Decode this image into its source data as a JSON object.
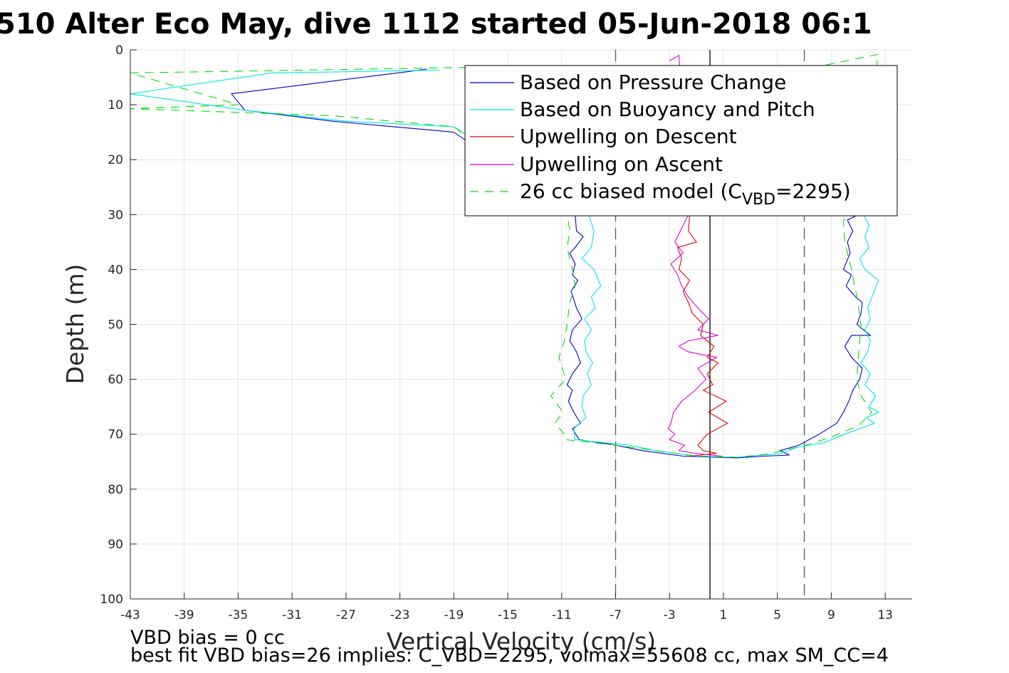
{
  "chart_data": {
    "type": "line",
    "title": "510 Alter Eco May, dive 1112 started 05-Jun-2018 06:1",
    "xlabel": "Vertical Velocity (cm/s)",
    "ylabel": "Depth (m)",
    "xlim": [
      -43,
      15
    ],
    "ylim": [
      0,
      100
    ],
    "y_reversed": true,
    "grid": true,
    "legend_placement": "top-right",
    "xticks": [
      -43,
      -39,
      -35,
      -31,
      -27,
      -23,
      -19,
      -15,
      -11,
      -7,
      -3,
      1,
      5,
      9,
      13
    ],
    "yticks": [
      0,
      10,
      20,
      30,
      40,
      50,
      60,
      70,
      80,
      90,
      100
    ],
    "reference_lines": [
      {
        "x": -7,
        "style": "dashed",
        "color": "#555555"
      },
      {
        "x": 7,
        "style": "dashed",
        "color": "#555555"
      },
      {
        "x": 0,
        "style": "solid",
        "color": "#000000"
      }
    ],
    "series": [
      {
        "name": "Based on Pressure Change",
        "color": "#0000c8",
        "dash": "",
        "points": [
          [
            -21,
            3.5
          ],
          [
            -22.5,
            4
          ],
          [
            -35.5,
            8
          ],
          [
            -34.5,
            11
          ],
          [
            -28,
            13
          ],
          [
            -19,
            15
          ],
          [
            -10,
            30
          ],
          [
            -9.9,
            33
          ],
          [
            -9.4,
            34
          ],
          [
            -10,
            36
          ],
          [
            -10.4,
            37
          ],
          [
            -10,
            39
          ],
          [
            -10.2,
            41
          ],
          [
            -9.8,
            42
          ],
          [
            -10.3,
            44
          ],
          [
            -9.9,
            47
          ],
          [
            -9.5,
            49
          ],
          [
            -10.2,
            51
          ],
          [
            -10.4,
            53
          ],
          [
            -9.9,
            55
          ],
          [
            -9.6,
            57
          ],
          [
            -10.2,
            59
          ],
          [
            -10.6,
            61
          ],
          [
            -10.2,
            62
          ],
          [
            -10.5,
            64
          ],
          [
            -10.1,
            66
          ],
          [
            -9.6,
            68
          ],
          [
            -10.2,
            69
          ],
          [
            -9.7,
            71
          ],
          [
            -7,
            72
          ],
          [
            -5,
            73
          ],
          [
            -2,
            74
          ],
          [
            2,
            74.3
          ],
          [
            4,
            74
          ],
          [
            5.9,
            73.8
          ],
          [
            5.2,
            73
          ],
          [
            6.6,
            72
          ],
          [
            8.1,
            70
          ],
          [
            9.4,
            68
          ],
          [
            9.9,
            66
          ],
          [
            10.3,
            64
          ],
          [
            10.6,
            62
          ],
          [
            11.1,
            60
          ],
          [
            11.3,
            58
          ],
          [
            10.5,
            56
          ],
          [
            10,
            54
          ],
          [
            10.5,
            52
          ],
          [
            11.9,
            52
          ],
          [
            10.9,
            50
          ],
          [
            11.2,
            48
          ],
          [
            11.3,
            46
          ],
          [
            10.8,
            45
          ],
          [
            10.1,
            43
          ],
          [
            10.5,
            41
          ],
          [
            9.9,
            40
          ],
          [
            10.4,
            37
          ],
          [
            10.2,
            35
          ],
          [
            10.6,
            33
          ],
          [
            10.2,
            31
          ],
          [
            11,
            30
          ]
        ]
      },
      {
        "name": "Based on Buoyancy and Pitch",
        "color": "#00e5ee",
        "dash": "",
        "points": [
          [
            -20,
            3.7
          ],
          [
            -32.5,
            4.2
          ],
          [
            -43,
            8
          ],
          [
            -34.5,
            11
          ],
          [
            -27,
            13
          ],
          [
            -19,
            14
          ],
          [
            -9,
            30
          ],
          [
            -8.6,
            33
          ],
          [
            -8.8,
            36
          ],
          [
            -9.5,
            38
          ],
          [
            -8.6,
            40
          ],
          [
            -8.1,
            43
          ],
          [
            -8.8,
            45
          ],
          [
            -8.5,
            47
          ],
          [
            -9.3,
            49
          ],
          [
            -8.8,
            51
          ],
          [
            -9.3,
            53
          ],
          [
            -9.2,
            55
          ],
          [
            -8.7,
            57
          ],
          [
            -9.1,
            59
          ],
          [
            -8.8,
            61
          ],
          [
            -9.4,
            63
          ],
          [
            -9.5,
            65
          ],
          [
            -9.2,
            67
          ],
          [
            -10.1,
            69
          ],
          [
            -10,
            71
          ],
          [
            -6,
            72
          ],
          [
            -4,
            73
          ],
          [
            -1,
            74
          ],
          [
            2,
            74.2
          ],
          [
            5.3,
            73.5
          ],
          [
            6.3,
            72.5
          ],
          [
            8.5,
            71.5
          ],
          [
            10,
            70
          ],
          [
            11.1,
            69
          ],
          [
            12.2,
            68
          ],
          [
            11.6,
            67
          ],
          [
            12.5,
            66
          ],
          [
            11.8,
            65
          ],
          [
            12.3,
            63
          ],
          [
            11.5,
            61
          ],
          [
            11.9,
            59
          ],
          [
            11.2,
            57
          ],
          [
            11.7,
            55
          ],
          [
            11.9,
            53
          ],
          [
            11.5,
            51
          ],
          [
            11.9,
            49
          ],
          [
            11.7,
            47
          ],
          [
            12.5,
            42
          ],
          [
            11.5,
            40
          ],
          [
            11.1,
            38
          ],
          [
            11.8,
            36
          ],
          [
            11.5,
            34
          ],
          [
            11.8,
            32
          ],
          [
            11.4,
            30
          ],
          [
            12.2,
            30
          ]
        ]
      },
      {
        "name": "Upwelling on Descent",
        "color": "#e00000",
        "dash": "",
        "points": [
          [
            -1.5,
            30
          ],
          [
            -1.6,
            33
          ],
          [
            -1,
            35
          ],
          [
            -2.4,
            36
          ],
          [
            -2.1,
            38
          ],
          [
            -2.3,
            40
          ],
          [
            -1.5,
            42
          ],
          [
            -2,
            44
          ],
          [
            -1.6,
            46
          ],
          [
            -1.3,
            48
          ],
          [
            -0.5,
            50
          ],
          [
            -0.7,
            52
          ],
          [
            0.3,
            54
          ],
          [
            -0.2,
            56
          ],
          [
            0.6,
            57
          ],
          [
            -0.2,
            59
          ],
          [
            0.2,
            61
          ],
          [
            -0.5,
            62
          ],
          [
            1.2,
            64
          ],
          [
            -0.1,
            66
          ],
          [
            1.3,
            68
          ],
          [
            -0.2,
            70
          ],
          [
            -0.9,
            72
          ],
          [
            -0.5,
            73
          ],
          [
            0.5,
            73.5
          ],
          [
            -1.5,
            74
          ]
        ]
      },
      {
        "name": "Upwelling on Ascent",
        "color": "#e000e0",
        "dash": "",
        "points": [
          [
            -3,
            2
          ],
          [
            -2.3,
            1
          ],
          [
            -1.6,
            30
          ],
          [
            -2.2,
            33
          ],
          [
            -2.6,
            35
          ],
          [
            -2,
            37
          ],
          [
            -2.9,
            39
          ],
          [
            -2.4,
            41
          ],
          [
            -2.1,
            43
          ],
          [
            -1.6,
            45
          ],
          [
            -0.9,
            47
          ],
          [
            -0.1,
            49
          ],
          [
            -0.9,
            51
          ],
          [
            0.6,
            52
          ],
          [
            -1.6,
            53
          ],
          [
            -2.3,
            54
          ],
          [
            -1.6,
            55
          ],
          [
            0.5,
            56
          ],
          [
            -0.9,
            58
          ],
          [
            -0.3,
            60
          ],
          [
            -1.1,
            62
          ],
          [
            -2.1,
            64
          ],
          [
            -2.7,
            66
          ],
          [
            -2.9,
            68
          ],
          [
            -3.1,
            69
          ],
          [
            -2.6,
            70
          ],
          [
            -3,
            71
          ],
          [
            -1.9,
            72
          ],
          [
            -2.3,
            73
          ],
          [
            -1.1,
            73.5
          ],
          [
            0.9,
            74
          ]
        ]
      },
      {
        "name": "26 cc biased model (C_VBD=2295)",
        "color": "#00e000",
        "dash": "12,9",
        "points": [
          [
            -18,
            3.2
          ],
          [
            -28,
            3.6
          ],
          [
            -43,
            4.2
          ],
          [
            -35,
            10
          ],
          [
            -43,
            10.7
          ],
          [
            -28,
            12
          ],
          [
            -19,
            14
          ],
          [
            -10.6,
            30
          ],
          [
            -10.4,
            33
          ],
          [
            -10.6,
            36
          ],
          [
            -10.2,
            40
          ],
          [
            -10,
            43
          ],
          [
            -10.4,
            46
          ],
          [
            -10.6,
            50
          ],
          [
            -10.8,
            53
          ],
          [
            -11.2,
            56
          ],
          [
            -10.7,
            60
          ],
          [
            -11.8,
            63
          ],
          [
            -10.9,
            66
          ],
          [
            -11.5,
            68
          ],
          [
            -10.8,
            70
          ],
          [
            -10.7,
            71
          ],
          [
            -7,
            72
          ],
          [
            -4,
            73
          ],
          [
            -1,
            74
          ],
          [
            2,
            74.2
          ],
          [
            4.3,
            73.6
          ],
          [
            5.8,
            72.8
          ],
          [
            7.4,
            71.8
          ],
          [
            9,
            70.5
          ],
          [
            11,
            68.5
          ],
          [
            12,
            66
          ],
          [
            11.2,
            63
          ],
          [
            10.9,
            60
          ],
          [
            11,
            56
          ],
          [
            11.2,
            50
          ],
          [
            10.9,
            45
          ],
          [
            10.5,
            40
          ],
          [
            10,
            35
          ],
          [
            9.9,
            31
          ],
          [
            10.6,
            30
          ],
          [
            12.5,
            0.8
          ],
          [
            8.5,
            2.8
          ]
        ]
      }
    ],
    "annotations": [
      "VBD bias = 0 cc",
      "best fit VBD bias=26 implies: C_VBD=2295, volmax=55608 cc, max SM_CC=4"
    ]
  },
  "legend": {
    "labels": [
      "Based on Pressure Change",
      "Based on Buoyancy and Pitch",
      "Upwelling on Descent",
      "Upwelling on Ascent"
    ],
    "model_prefix": "26 cc biased model (C",
    "model_subscript": "VBD",
    "model_suffix": "=2295)"
  }
}
